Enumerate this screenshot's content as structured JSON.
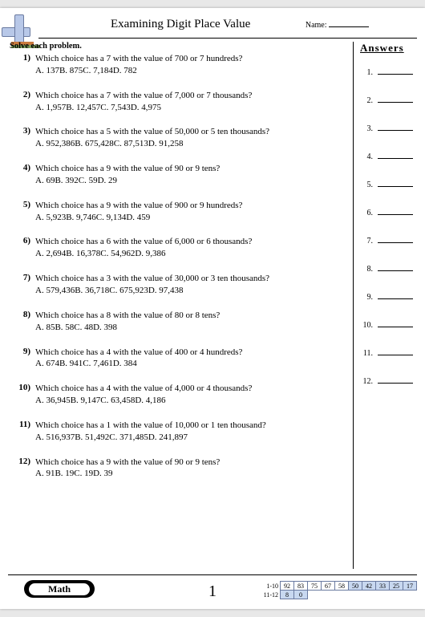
{
  "header": {
    "title": "Examining Digit Place Value",
    "name_label": "Name:"
  },
  "instruction": "Solve each problem.",
  "answers_label": "Answers",
  "problems": [
    {
      "n": "1)",
      "q": "Which choice has a 7 with the value of 700 or 7 hundreds?",
      "c": "A. 137B. 875C. 7,184D. 782"
    },
    {
      "n": "2)",
      "q": "Which choice has a 7 with the value of 7,000 or 7 thousands?",
      "c": "A. 1,957B. 12,457C. 7,543D. 4,975"
    },
    {
      "n": "3)",
      "q": "Which choice has a 5 with the value of 50,000 or 5 ten thousands?",
      "c": "A. 952,386B. 675,428C. 87,513D. 91,258"
    },
    {
      "n": "4)",
      "q": "Which choice has a 9 with the value of 90 or 9 tens?",
      "c": "A. 69B. 392C. 59D. 29"
    },
    {
      "n": "5)",
      "q": "Which choice has a 9 with the value of 900 or 9 hundreds?",
      "c": "A. 5,923B. 9,746C. 9,134D. 459"
    },
    {
      "n": "6)",
      "q": "Which choice has a 6 with the value of 6,000 or 6 thousands?",
      "c": "A. 2,694B. 16,378C. 54,962D. 9,386"
    },
    {
      "n": "7)",
      "q": "Which choice has a 3 with the value of 30,000 or 3 ten thousands?",
      "c": "A. 579,436B. 36,718C. 675,923D. 97,438"
    },
    {
      "n": "8)",
      "q": "Which choice has a 8 with the value of 80 or 8 tens?",
      "c": "A. 85B. 58C. 48D. 398"
    },
    {
      "n": "9)",
      "q": "Which choice has a 4 with the value of 400 or 4 hundreds?",
      "c": "A. 674B. 941C. 7,461D. 384"
    },
    {
      "n": "10)",
      "q": "Which choice has a 4 with the value of 4,000 or 4 thousands?",
      "c": "A. 36,945B. 9,147C. 63,458D. 4,186"
    },
    {
      "n": "11)",
      "q": "Which choice has a 1 with the value of 10,000 or 1 ten thousand?",
      "c": "A. 516,937B. 51,492C. 371,485D. 241,897"
    },
    {
      "n": "12)",
      "q": "Which choice has a 9 with the value of 90 or 9 tens?",
      "c": "A. 91B. 19C. 19D. 39"
    }
  ],
  "answer_slots": [
    "1.",
    "2.",
    "3.",
    "4.",
    "5.",
    "6.",
    "7.",
    "8.",
    "9.",
    "10.",
    "11.",
    "12."
  ],
  "footer": {
    "subject": "Math",
    "page": "1",
    "score": {
      "row1_label": "1-10",
      "row2_label": "11-12",
      "row1": [
        "92",
        "83",
        "75",
        "67",
        "58",
        "50",
        "42",
        "33",
        "25",
        "17"
      ],
      "row2": [
        "8",
        "0"
      ],
      "row1_hl_from": 5,
      "row2_hl_to": 2
    }
  }
}
